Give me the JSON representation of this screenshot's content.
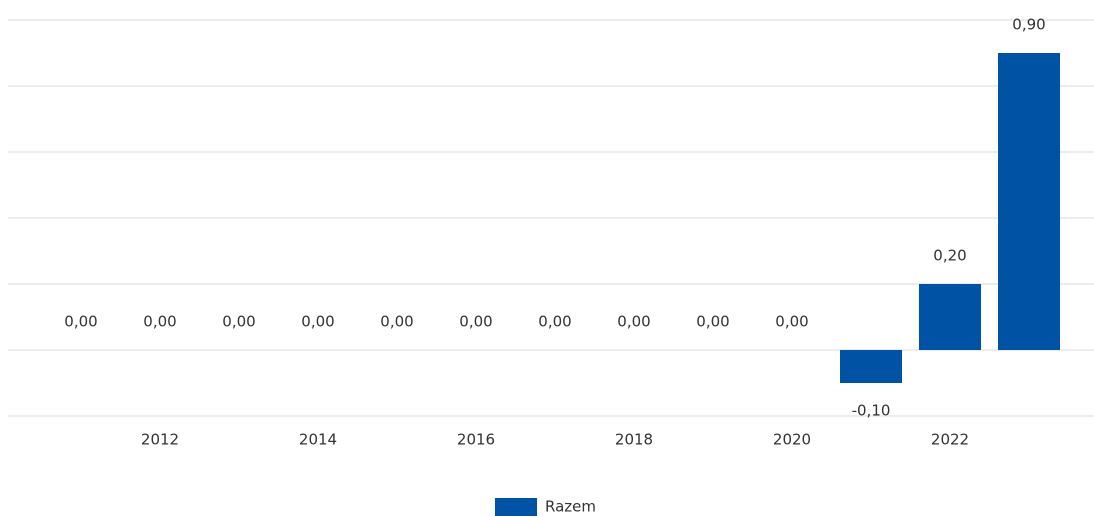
{
  "chart_data": {
    "type": "bar",
    "categories": [
      null,
      "2012",
      null,
      "2014",
      null,
      "2016",
      null,
      "2018",
      null,
      "2020",
      null,
      "2022",
      null
    ],
    "series": [
      {
        "name": "Razem",
        "color": "#0052a5",
        "values": [
          0,
          0,
          0,
          0,
          0,
          0,
          0,
          0,
          0,
          0,
          -0.1,
          0.2,
          0.9
        ],
        "value_labels": [
          "0,00",
          "0,00",
          "0,00",
          "0,00",
          "0,00",
          "0,00",
          "0,00",
          "0,00",
          "0,00",
          "0,00",
          "-0,10",
          "0,20",
          "0,90"
        ]
      }
    ],
    "ylim": [
      -0.2,
      1.0
    ],
    "yticks": [
      -0.2,
      0,
      0.2,
      0.4,
      0.6,
      0.8,
      1.0
    ],
    "grid": true,
    "legend": "bottom"
  }
}
